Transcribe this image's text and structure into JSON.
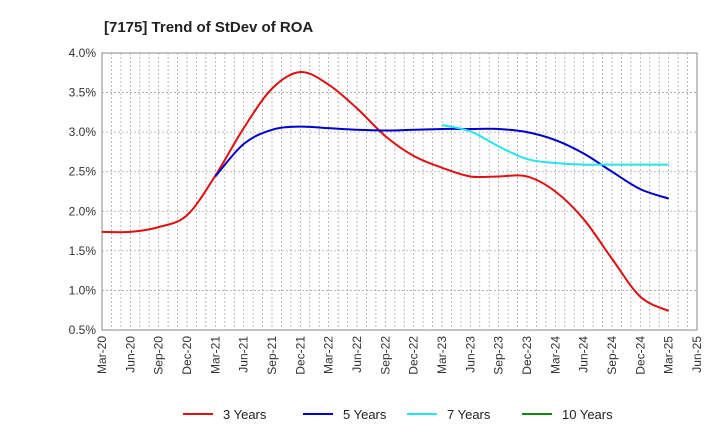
{
  "chart_data": {
    "type": "line",
    "title": "[7175]  Trend of StDev of ROA",
    "xlabel": "",
    "ylabel": "",
    "ylim": [
      0.5,
      4.0
    ],
    "y_ticks": [
      "0.5%",
      "1.0%",
      "1.5%",
      "2.0%",
      "2.5%",
      "3.0%",
      "3.5%",
      "4.0%"
    ],
    "y_tick_values": [
      0.5,
      1.0,
      1.5,
      2.0,
      2.5,
      3.0,
      3.5,
      4.0
    ],
    "categories": [
      "Mar-20",
      "Jun-20",
      "Sep-20",
      "Dec-20",
      "Mar-21",
      "Jun-21",
      "Sep-21",
      "Dec-21",
      "Mar-22",
      "Jun-22",
      "Sep-22",
      "Dec-22",
      "Mar-23",
      "Jun-23",
      "Sep-23",
      "Dec-23",
      "Mar-24",
      "Jun-24",
      "Sep-24",
      "Dec-24",
      "Mar-25",
      "Jun-25"
    ],
    "grid": true,
    "legend_position": "bottom",
    "series": [
      {
        "name": "3 Years",
        "color": "#dd1111",
        "values": [
          1.74,
          1.74,
          1.8,
          1.95,
          2.45,
          3.05,
          3.55,
          3.76,
          3.6,
          3.3,
          2.95,
          2.7,
          2.55,
          2.44,
          2.44,
          2.44,
          2.25,
          1.9,
          1.4,
          0.92,
          0.74,
          null
        ]
      },
      {
        "name": "5 Years",
        "color": "#0000cc",
        "values": [
          null,
          null,
          null,
          null,
          2.44,
          2.85,
          3.03,
          3.07,
          3.05,
          3.03,
          3.02,
          3.03,
          3.04,
          3.04,
          3.04,
          3.0,
          2.9,
          2.73,
          2.5,
          2.28,
          2.16,
          null
        ]
      },
      {
        "name": "7 Years",
        "color": "#22e5f0",
        "values": [
          null,
          null,
          null,
          null,
          null,
          null,
          null,
          null,
          null,
          null,
          null,
          null,
          3.09,
          3.01,
          2.82,
          2.66,
          2.61,
          2.59,
          2.59,
          2.59,
          2.59,
          null
        ]
      },
      {
        "name": "10 Years",
        "color": "#118811",
        "values": [
          null,
          null,
          null,
          null,
          null,
          null,
          null,
          null,
          null,
          null,
          null,
          null,
          null,
          null,
          null,
          null,
          null,
          null,
          null,
          null,
          null,
          null
        ]
      }
    ]
  }
}
